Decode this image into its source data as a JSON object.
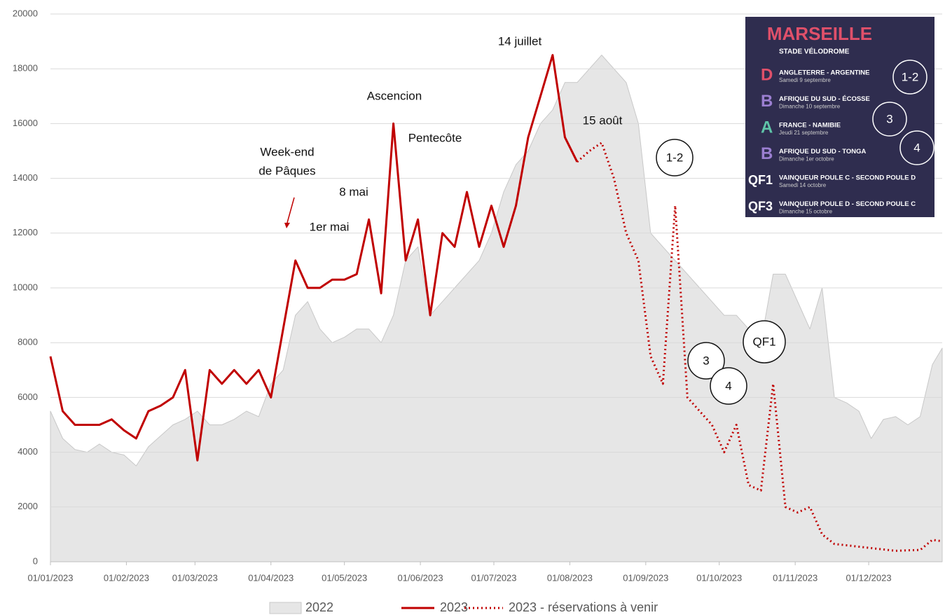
{
  "chart_data": {
    "type": "line",
    "x": [
      "01/01/2023",
      "06/01/2023",
      "11/01/2023",
      "16/01/2023",
      "21/01/2023",
      "26/01/2023",
      "31/01/2023",
      "05/02/2023",
      "10/02/2023",
      "15/02/2023",
      "20/02/2023",
      "25/02/2023",
      "02/03/2023",
      "07/03/2023",
      "12/03/2023",
      "17/03/2023",
      "22/03/2023",
      "27/03/2023",
      "01/04/2023",
      "06/04/2023",
      "11/04/2023",
      "16/04/2023",
      "21/04/2023",
      "26/04/2023",
      "01/05/2023",
      "06/05/2023",
      "11/05/2023",
      "16/05/2023",
      "21/05/2023",
      "26/05/2023",
      "31/05/2023",
      "05/06/2023",
      "10/06/2023",
      "15/06/2023",
      "20/06/2023",
      "25/06/2023",
      "30/06/2023",
      "05/07/2023",
      "10/07/2023",
      "15/07/2023",
      "20/07/2023",
      "25/07/2023",
      "30/07/2023",
      "04/08/2023",
      "09/08/2023",
      "14/08/2023",
      "19/08/2023",
      "24/08/2023",
      "29/08/2023",
      "03/09/2023",
      "08/09/2023",
      "13/09/2023",
      "18/09/2023",
      "23/09/2023",
      "28/09/2023",
      "03/10/2023",
      "08/10/2023",
      "13/10/2023",
      "18/10/2023",
      "23/10/2023",
      "28/10/2023",
      "02/11/2023",
      "07/11/2023",
      "12/11/2023",
      "17/11/2023",
      "22/11/2023",
      "27/11/2023",
      "02/12/2023",
      "07/12/2023",
      "12/12/2023",
      "17/12/2023",
      "22/12/2023",
      "27/12/2023",
      "31/12/2023"
    ],
    "series": [
      {
        "name": "2022",
        "color": "#e6e6e6",
        "values": [
          5500,
          4500,
          4100,
          4000,
          4300,
          4000,
          3900,
          3500,
          4200,
          4600,
          5000,
          5200,
          5500,
          5000,
          5000,
          5200,
          5500,
          5300,
          6500,
          7000,
          9000,
          9500,
          8500,
          8000,
          8200,
          8500,
          8500,
          8000,
          9000,
          11000,
          11500,
          9000,
          9500,
          10000,
          10500,
          11000,
          12000,
          13500,
          14500,
          15000,
          16000,
          16500,
          17500,
          17500,
          18000,
          18500,
          18000,
          17500,
          16000,
          12000,
          11500,
          11000,
          10500,
          10000,
          9500,
          9000,
          9000,
          8500,
          8000,
          10500,
          10500,
          9500,
          8500,
          10000,
          6000,
          5800,
          5500,
          4500,
          5200,
          5300,
          5000,
          5300,
          7200,
          7800
        ]
      },
      {
        "name": "2023",
        "color": "#c00000",
        "values": [
          7500,
          5500,
          5000,
          5000,
          5000,
          5200,
          4800,
          4500,
          5500,
          5700,
          6000,
          7000,
          3700,
          7000,
          6500,
          7000,
          6500,
          7000,
          6000,
          8500,
          11000,
          10000,
          10000,
          10300,
          10300,
          10500,
          12500,
          9800,
          16000,
          11000,
          12500,
          9000,
          12000,
          11500,
          13500,
          11500,
          13000,
          11500,
          13000,
          15500,
          17000,
          18500,
          15500,
          14600,
          null,
          null,
          null,
          null,
          null,
          null,
          null,
          null,
          null,
          null,
          null,
          null,
          null,
          null,
          null,
          null,
          null,
          null,
          null,
          null,
          null,
          null,
          null,
          null,
          null,
          null,
          null,
          null,
          null,
          null
        ]
      },
      {
        "name": "2023 - réservations à venir",
        "color": "#c00000",
        "values": [
          null,
          null,
          null,
          null,
          null,
          null,
          null,
          null,
          null,
          null,
          null,
          null,
          null,
          null,
          null,
          null,
          null,
          null,
          null,
          null,
          null,
          null,
          null,
          null,
          null,
          null,
          null,
          null,
          null,
          null,
          null,
          null,
          null,
          null,
          null,
          null,
          null,
          null,
          null,
          null,
          null,
          null,
          null,
          14600,
          15000,
          15300,
          14000,
          12000,
          11000,
          7500,
          6500,
          13000,
          6000,
          5500,
          5000,
          4000,
          5000,
          2800,
          2600,
          6500,
          2000,
          1800,
          2000,
          1000,
          650,
          600,
          550,
          500,
          450,
          400,
          420,
          430,
          800,
          750
        ]
      }
    ],
    "xlim": [
      "01/01/2023",
      "31/12/2023"
    ],
    "xticks": [
      "01/01/2023",
      "01/02/2023",
      "01/03/2023",
      "01/04/2023",
      "01/05/2023",
      "01/06/2023",
      "01/07/2023",
      "01/08/2023",
      "01/09/2023",
      "01/10/2023",
      "01/11/2023",
      "01/12/2023"
    ],
    "ylim": [
      0,
      20000
    ],
    "yticks": [
      0,
      2000,
      4000,
      6000,
      8000,
      10000,
      12000,
      14000,
      16000,
      18000,
      20000
    ],
    "grid": true,
    "legend": "bottom",
    "annotations": [
      "14 juillet",
      "Ascencion",
      "Pentecôte",
      "15 août",
      "Week-end",
      "de Pâques",
      "8 mai",
      "1er mai"
    ],
    "circled": [
      "1-2",
      "3",
      "4",
      "QF1"
    ]
  },
  "inset": {
    "city": "MARSEILLE",
    "stadium": "STADE VÉLODROME",
    "matches": [
      {
        "pool": "D",
        "teams": "ANGLETERRE - ARGENTINE",
        "date": "Samedi 9 septembre"
      },
      {
        "pool": "B",
        "teams": "AFRIQUE DU SUD - ÉCOSSE",
        "date": "Dimanche 10 septembre"
      },
      {
        "pool": "A",
        "teams": "FRANCE - NAMIBIE",
        "date": "Jeudi 21 septembre"
      },
      {
        "pool": "B",
        "teams": "AFRIQUE DU SUD - TONGA",
        "date": "Dimanche 1er octobre"
      },
      {
        "pool": "QF1",
        "teams": "VAINQUEUR POULE C - SECOND POULE D",
        "date": "Samedi 14 octobre"
      },
      {
        "pool": "QF3",
        "teams": "VAINQUEUR POULE D - SECOND POULE C",
        "date": "Dimanche 15 octobre"
      }
    ],
    "circled": [
      "1-2",
      "3",
      "4"
    ]
  }
}
